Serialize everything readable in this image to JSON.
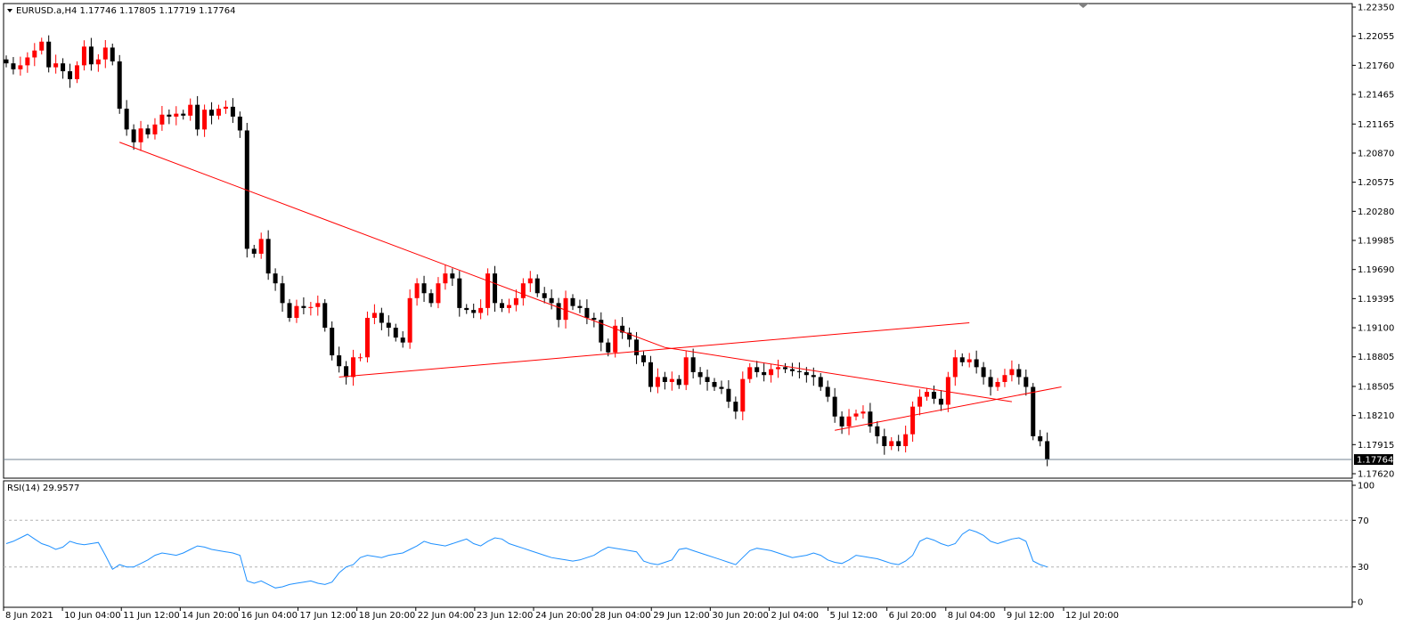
{
  "window": {
    "symbol_line": "EURUSD.a,H4  1.17746 1.17805 1.17719 1.17764",
    "menu_icon": "triangle-down-icon"
  },
  "rsi_panel": {
    "label": "RSI(14) 29.9577",
    "levels_labels": [
      "100",
      "70",
      "30",
      "0"
    ]
  },
  "colors": {
    "bull": "#ff0000",
    "bear": "#000000",
    "trendline": "#ff0000",
    "rsi_line": "#1e90ff",
    "bid_line": "#708090",
    "grid_level": "#b4b4b4"
  },
  "chart_data": {
    "type": "candlestick",
    "price_axis": {
      "ticks": [
        1.2235,
        1.22055,
        1.2176,
        1.21465,
        1.21165,
        1.2087,
        1.20575,
        1.2028,
        1.19985,
        1.1969,
        1.19395,
        1.191,
        1.18805,
        1.18505,
        1.1821,
        1.17915,
        1.1762
      ],
      "tick_labels": [
        "1.22350",
        "1.22055",
        "1.21760",
        "1.21465",
        "1.21165",
        "1.20870",
        "1.20575",
        "1.20280",
        "1.19985",
        "1.19690",
        "1.19395",
        "1.19100",
        "1.18805",
        "1.18505",
        "1.18210",
        "1.17915",
        "1.17620"
      ],
      "range": [
        1.1757,
        1.2235
      ]
    },
    "current_price": 1.17764,
    "current_price_label": "1.17764",
    "time_labels": [
      "8 Jun 2021",
      "10 Jun 04:00",
      "11 Jun 12:00",
      "14 Jun 20:00",
      "16 Jun 04:00",
      "17 Jun 12:00",
      "18 Jun 20:00",
      "22 Jun 04:00",
      "23 Jun 12:00",
      "24 Jun 20:00",
      "28 Jun 04:00",
      "29 Jun 12:00",
      "30 Jun 20:00",
      "2 Jul 04:00",
      "5 Jul 12:00",
      "6 Jul 20:00",
      "8 Jul 04:00",
      "9 Jul 12:00",
      "12 Jul 20:00"
    ],
    "closes": [
      1.2178,
      1.2172,
      1.2176,
      1.2184,
      1.2191,
      1.22,
      1.2174,
      1.2178,
      1.217,
      1.2162,
      1.2176,
      1.2195,
      1.2177,
      1.2182,
      1.2194,
      1.218,
      1.2132,
      1.2111,
      1.2098,
      1.2112,
      1.2106,
      1.2116,
      1.2126,
      1.2124,
      1.2127,
      1.2125,
      1.2136,
      1.2111,
      1.2131,
      1.2125,
      1.2132,
      1.2134,
      1.2124,
      1.211,
      1.199,
      1.1985,
      1.2,
      1.1965,
      1.1955,
      1.1935,
      1.192,
      1.1932,
      1.193,
      1.1931,
      1.1935,
      1.191,
      1.1882,
      1.1871,
      1.186,
      1.188,
      1.188,
      1.192,
      1.1925,
      1.1915,
      1.191,
      1.19,
      1.1895,
      1.194,
      1.1955,
      1.1945,
      1.1935,
      1.1955,
      1.1965,
      1.196,
      1.193,
      1.1928,
      1.1925,
      1.193,
      1.1965,
      1.1935,
      1.193,
      1.1933,
      1.194,
      1.1955,
      1.196,
      1.1945,
      1.194,
      1.1935,
      1.1918,
      1.194,
      1.1932,
      1.193,
      1.192,
      1.1918,
      1.1895,
      1.1885,
      1.1912,
      1.1905,
      1.1898,
      1.1882,
      1.1875,
      1.185,
      1.186,
      1.1855,
      1.1858,
      1.1852,
      1.188,
      1.1865,
      1.186,
      1.1855,
      1.185,
      1.1848,
      1.1835,
      1.1825,
      1.1858,
      1.187,
      1.1865,
      1.1862,
      1.1868,
      1.187,
      1.1868,
      1.1866,
      1.1865,
      1.1862,
      1.186,
      1.185,
      1.184,
      1.182,
      1.181,
      1.182,
      1.1823,
      1.1825,
      1.181,
      1.18,
      1.179,
      1.1795,
      1.179,
      1.1802,
      1.183,
      1.184,
      1.1845,
      1.1838,
      1.1832,
      1.186,
      1.188,
      1.1875,
      1.1878,
      1.187,
      1.186,
      1.185,
      1.1855,
      1.1862,
      1.1868,
      1.186,
      1.185,
      1.18,
      1.1795,
      1.1776
    ],
    "rsi": {
      "period": 14,
      "last": 29.9577,
      "range": [
        0,
        100
      ],
      "levels": [
        70,
        30
      ],
      "values": [
        50,
        52,
        55,
        58,
        54,
        50,
        48,
        45,
        47,
        52,
        50,
        49,
        50,
        51,
        40,
        28,
        32,
        30,
        30,
        33,
        36,
        40,
        42,
        41,
        40,
        42,
        45,
        48,
        47,
        45,
        44,
        43,
        42,
        40,
        18,
        16,
        18,
        15,
        12,
        13,
        15,
        16,
        17,
        18,
        16,
        15,
        17,
        25,
        30,
        32,
        38,
        40,
        39,
        38,
        40,
        41,
        42,
        45,
        48,
        52,
        50,
        49,
        48,
        50,
        52,
        54,
        50,
        48,
        52,
        55,
        54,
        50,
        48,
        46,
        44,
        42,
        40,
        38,
        37,
        36,
        35,
        36,
        38,
        40,
        44,
        47,
        46,
        45,
        44,
        43,
        35,
        33,
        32,
        34,
        36,
        45,
        46,
        44,
        42,
        40,
        38,
        36,
        34,
        32,
        38,
        44,
        46,
        45,
        44,
        42,
        40,
        38,
        39,
        40,
        42,
        40,
        36,
        34,
        33,
        36,
        40,
        39,
        38,
        37,
        35,
        33,
        32,
        35,
        40,
        52,
        55,
        53,
        50,
        48,
        50,
        58,
        62,
        60,
        57,
        52,
        50,
        52,
        54,
        55,
        52,
        35,
        32,
        30
      ]
    },
    "trendlines": [
      {
        "from": [
          16,
          1.2098
        ],
        "to": [
          93,
          1.189
        ]
      },
      {
        "from": [
          93,
          1.189
        ],
        "to": [
          142,
          1.1835
        ]
      },
      {
        "from": [
          47,
          1.186
        ],
        "to": [
          136,
          1.1915
        ]
      },
      {
        "from": [
          117,
          1.1806
        ],
        "to": [
          149,
          1.185
        ]
      }
    ]
  }
}
